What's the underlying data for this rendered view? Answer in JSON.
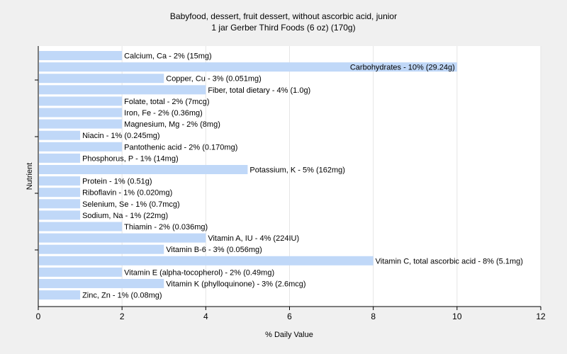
{
  "chart_data": {
    "type": "bar",
    "orientation": "horizontal",
    "title": "Babyfood, dessert, fruit dessert, without ascorbic acid, junior",
    "subtitle": "1 jar Gerber Third Foods (6 oz) (170g)",
    "xlabel": "% Daily Value",
    "ylabel": "Nutrient",
    "xlim": [
      0,
      12
    ],
    "xticks": [
      "0",
      "2",
      "4",
      "6",
      "8",
      "10",
      "12"
    ],
    "grid": "vertical",
    "bar_color": "#c0d8f8",
    "categories": [
      "Calcium, Ca",
      "Carbohydrates",
      "Copper, Cu",
      "Fiber, total dietary",
      "Folate, total",
      "Iron, Fe",
      "Magnesium, Mg",
      "Niacin",
      "Pantothenic acid",
      "Phosphorus, P",
      "Potassium, K",
      "Protein",
      "Riboflavin",
      "Selenium, Se",
      "Sodium, Na",
      "Thiamin",
      "Vitamin A, IU",
      "Vitamin B-6",
      "Vitamin C, total ascorbic acid",
      "Vitamin E (alpha-tocopherol)",
      "Vitamin K (phylloquinone)",
      "Zinc, Zn"
    ],
    "values": [
      2,
      10,
      3,
      4,
      2,
      2,
      2,
      1,
      2,
      1,
      5,
      1,
      1,
      1,
      1,
      2,
      4,
      3,
      8,
      2,
      3,
      1
    ],
    "labels": [
      "Calcium, Ca - 2% (15mg)",
      "Carbohydrates - 10% (29.24g)",
      "Copper, Cu - 3% (0.051mg)",
      "Fiber, total dietary - 4% (1.0g)",
      "Folate, total - 2% (7mcg)",
      "Iron, Fe - 2% (0.36mg)",
      "Magnesium, Mg - 2% (8mg)",
      "Niacin - 1% (0.245mg)",
      "Pantothenic acid - 2% (0.170mg)",
      "Phosphorus, P - 1% (14mg)",
      "Potassium, K - 5% (162mg)",
      "Protein - 1% (0.51g)",
      "Riboflavin - 1% (0.020mg)",
      "Selenium, Se - 1% (0.7mcg)",
      "Sodium, Na - 1% (22mg)",
      "Thiamin - 2% (0.036mg)",
      "Vitamin A, IU - 4% (224IU)",
      "Vitamin B-6 - 3% (0.056mg)",
      "Vitamin C, total ascorbic acid - 8% (5.1mg)",
      "Vitamin E (alpha-tocopherol) - 2% (0.49mg)",
      "Vitamin K (phylloquinone) - 3% (2.6mcg)",
      "Zinc, Zn - 1% (0.08mg)"
    ]
  }
}
